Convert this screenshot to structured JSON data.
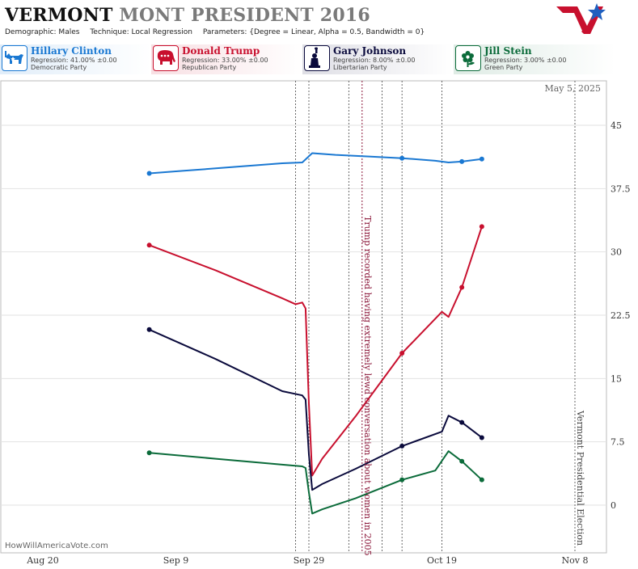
{
  "header": {
    "state": "VERMONT",
    "rest": "MONT PRESIDENT 2016",
    "demographic": "Demographic: Males",
    "technique": "Technique: Local Regression",
    "parameters": "Parameters: {Degree = Linear, Alpha = 0.5, Bandwidth = 0}"
  },
  "logo_colors": {
    "red": "#c8102e",
    "blue": "#1f5fbf"
  },
  "legend": [
    {
      "name": "Hillary Clinton",
      "regression": "Regression: 41.00% ±0.00",
      "party": "Democratic Party",
      "color": "#1a78d2",
      "icon": "donkey-icon"
    },
    {
      "name": "Donald Trump",
      "regression": "Regression: 33.00% ±0.00",
      "party": "Republican Party",
      "color": "#c8102e",
      "icon": "elephant-icon"
    },
    {
      "name": "Gary Johnson",
      "regression": "Regression: 8.00% ±0.00",
      "party": "Libertarian Party",
      "color": "#0a0a3c",
      "icon": "liberty-icon"
    },
    {
      "name": "Jill Stein",
      "regression": "Regression: 3.00% ±0.00",
      "party": "Green Party",
      "color": "#0b6b3a",
      "icon": "flower-icon"
    }
  ],
  "chart_data": {
    "type": "line",
    "date_label": "May 5, 2025",
    "source": "HowWillAmericaVote.com",
    "x_ticks": [
      "Aug 20",
      "Sep 9",
      "Sep 29",
      "Oct 19",
      "Nov 8"
    ],
    "x_tick_dates": [
      "2016-08-20",
      "2016-09-09",
      "2016-09-29",
      "2016-10-19",
      "2016-11-08"
    ],
    "x_range": [
      "2016-08-16",
      "2016-11-10"
    ],
    "y_ticks": [
      "0",
      "7.5",
      "15",
      "22.5",
      "30",
      "37.5",
      "45"
    ],
    "y_range": [
      -3,
      49
    ],
    "grid": "horizontal",
    "y_axis_position": "right",
    "event_lines": [
      "2016-09-27",
      "2016-09-29",
      "2016-10-05",
      "2016-10-10",
      "2016-10-13",
      "2016-10-19",
      "2016-11-08"
    ],
    "annotations": [
      {
        "date": "2016-10-07",
        "text": "Trump recorded having extremely lewd conversation about women in 2005",
        "color": "#8a1538"
      },
      {
        "date": "2016-11-08",
        "text": "Vermont Presidential Election",
        "color": "#444444"
      }
    ],
    "series": [
      {
        "name": "Hillary Clinton",
        "color": "#1a78d2",
        "line": [
          [
            "2016-09-05",
            39.3
          ],
          [
            "2016-09-10",
            39.6
          ],
          [
            "2016-09-15",
            39.9
          ],
          [
            "2016-09-20",
            40.2
          ],
          [
            "2016-09-25",
            40.5
          ],
          [
            "2016-09-28",
            40.6
          ],
          [
            "2016-09-29.5",
            41.7
          ],
          [
            "2016-10-03",
            41.5
          ],
          [
            "2016-10-08",
            41.3
          ],
          [
            "2016-10-13",
            41.1
          ],
          [
            "2016-10-18",
            40.8
          ],
          [
            "2016-10-20",
            40.6
          ],
          [
            "2016-10-22",
            40.7
          ],
          [
            "2016-10-25",
            41.0
          ]
        ],
        "points": [
          [
            "2016-09-05",
            39.3
          ],
          [
            "2016-10-13",
            41.1
          ],
          [
            "2016-10-22",
            40.7
          ],
          [
            "2016-10-25",
            41.0
          ]
        ]
      },
      {
        "name": "Donald Trump",
        "color": "#c8102e",
        "line": [
          [
            "2016-09-05",
            30.8
          ],
          [
            "2016-09-15",
            27.8
          ],
          [
            "2016-09-25",
            24.5
          ],
          [
            "2016-09-27",
            23.8
          ],
          [
            "2016-09-28",
            24.0
          ],
          [
            "2016-09-28.5",
            23.3
          ],
          [
            "2016-09-29",
            12.0
          ],
          [
            "2016-09-29.5",
            3.5
          ],
          [
            "2016-10-01",
            5.5
          ],
          [
            "2016-10-06",
            10.5
          ],
          [
            "2016-10-13",
            18.0
          ],
          [
            "2016-10-19",
            22.9
          ],
          [
            "2016-10-20",
            22.3
          ],
          [
            "2016-10-22",
            25.8
          ],
          [
            "2016-10-25",
            33.0
          ]
        ],
        "points": [
          [
            "2016-09-05",
            30.8
          ],
          [
            "2016-10-13",
            18.0
          ],
          [
            "2016-10-22",
            25.8
          ],
          [
            "2016-10-25",
            33.0
          ]
        ]
      },
      {
        "name": "Gary Johnson",
        "color": "#0a0a3c",
        "line": [
          [
            "2016-09-05",
            20.8
          ],
          [
            "2016-09-15",
            17.3
          ],
          [
            "2016-09-25",
            13.5
          ],
          [
            "2016-09-28",
            13.0
          ],
          [
            "2016-09-28.5",
            12.5
          ],
          [
            "2016-09-29",
            6.0
          ],
          [
            "2016-09-29.5",
            1.8
          ],
          [
            "2016-10-01",
            2.5
          ],
          [
            "2016-10-06",
            4.3
          ],
          [
            "2016-10-13",
            7.0
          ],
          [
            "2016-10-19",
            8.7
          ],
          [
            "2016-10-20",
            10.6
          ],
          [
            "2016-10-22",
            9.8
          ],
          [
            "2016-10-25",
            8.0
          ]
        ],
        "points": [
          [
            "2016-09-05",
            20.8
          ],
          [
            "2016-10-13",
            7.0
          ],
          [
            "2016-10-22",
            9.8
          ],
          [
            "2016-10-25",
            8.0
          ]
        ]
      },
      {
        "name": "Jill Stein",
        "color": "#0b6b3a",
        "line": [
          [
            "2016-09-05",
            6.2
          ],
          [
            "2016-09-15",
            5.5
          ],
          [
            "2016-09-25",
            4.8
          ],
          [
            "2016-09-28",
            4.6
          ],
          [
            "2016-09-28.5",
            4.4
          ],
          [
            "2016-09-29",
            1.5
          ],
          [
            "2016-09-29.5",
            -1.0
          ],
          [
            "2016-10-01",
            -0.5
          ],
          [
            "2016-10-06",
            0.8
          ],
          [
            "2016-10-13",
            3.0
          ],
          [
            "2016-10-18",
            4.1
          ],
          [
            "2016-10-20",
            6.4
          ],
          [
            "2016-10-22",
            5.2
          ],
          [
            "2016-10-25",
            3.0
          ]
        ],
        "points": [
          [
            "2016-09-05",
            6.2
          ],
          [
            "2016-10-13",
            3.0
          ],
          [
            "2016-10-22",
            5.2
          ],
          [
            "2016-10-25",
            3.0
          ]
        ]
      }
    ]
  }
}
